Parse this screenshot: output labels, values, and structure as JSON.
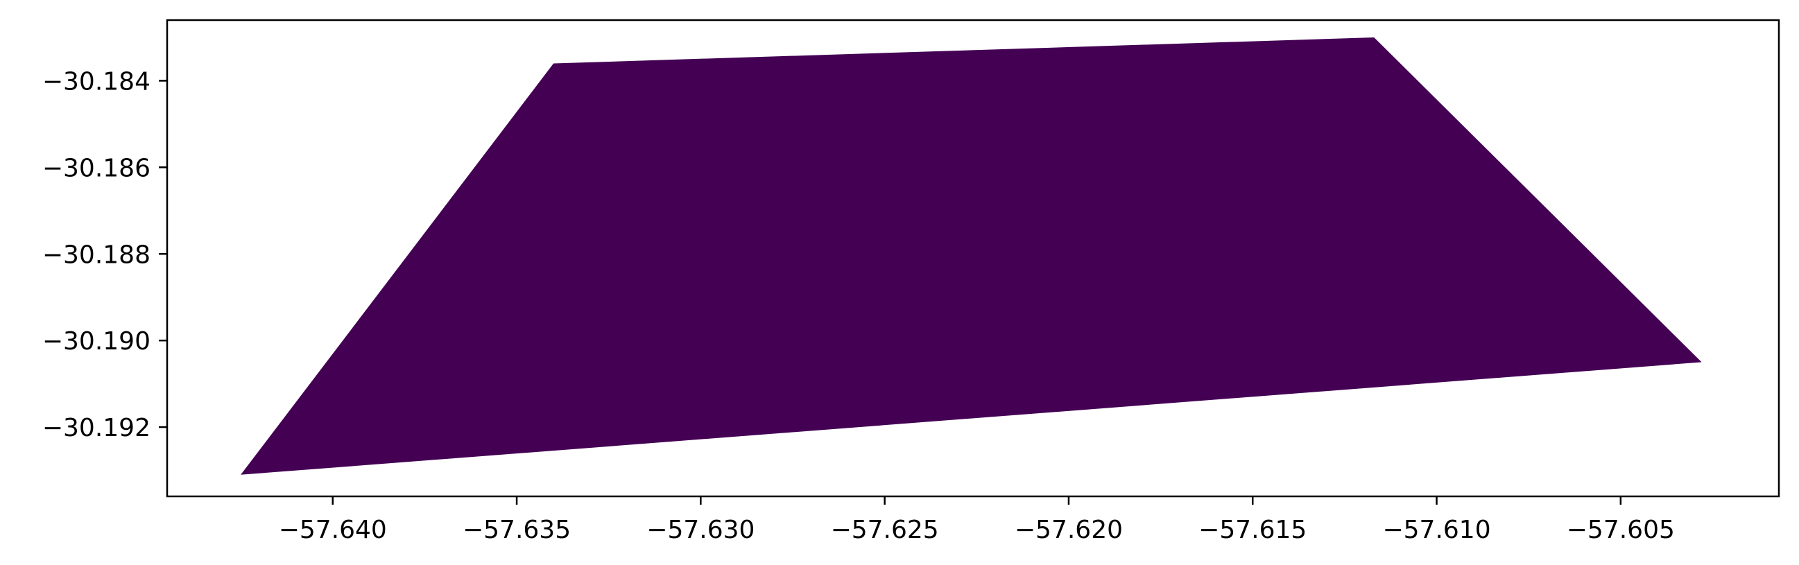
{
  "chart_data": {
    "type": "polygon",
    "title": "",
    "xlabel": "",
    "ylabel": "",
    "fill_color": "#440154",
    "xlim": [
      -57.6445,
      -57.6007
    ],
    "ylim": [
      -30.1936,
      -30.1826
    ],
    "polygon": [
      {
        "x": -57.6425,
        "y": -30.1931
      },
      {
        "x": -57.634,
        "y": -30.1836
      },
      {
        "x": -57.6117,
        "y": -30.183
      },
      {
        "x": -57.6028,
        "y": -30.1905
      }
    ],
    "x_ticks": [
      {
        "value": -57.64,
        "label": "−57.640"
      },
      {
        "value": -57.635,
        "label": "−57.635"
      },
      {
        "value": -57.63,
        "label": "−57.630"
      },
      {
        "value": -57.625,
        "label": "−57.625"
      },
      {
        "value": -57.62,
        "label": "−57.620"
      },
      {
        "value": -57.615,
        "label": "−57.615"
      },
      {
        "value": -57.61,
        "label": "−57.610"
      },
      {
        "value": -57.605,
        "label": "−57.605"
      }
    ],
    "y_ticks": [
      {
        "value": -30.184,
        "label": "−30.184"
      },
      {
        "value": -30.186,
        "label": "−30.186"
      },
      {
        "value": -30.188,
        "label": "−30.188"
      },
      {
        "value": -30.19,
        "label": "−30.190"
      },
      {
        "value": -30.192,
        "label": "−30.192"
      }
    ]
  }
}
